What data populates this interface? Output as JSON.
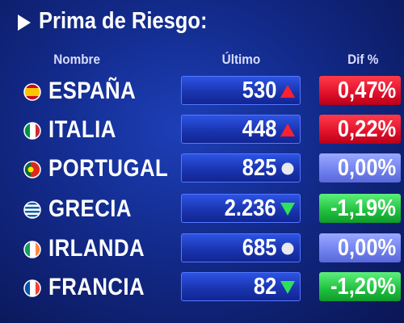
{
  "header": {
    "title": "Prima de Riesgo:"
  },
  "table": {
    "columns": [
      "Nombre",
      "Último",
      "Dif %"
    ],
    "rows": [
      [
        "ESPAÑA",
        "530",
        "0,47%"
      ],
      [
        "ITALIA",
        "448",
        "0,22%"
      ],
      [
        "PORTUGAL",
        "825",
        "0,00%"
      ],
      [
        "GRECIA",
        "2.236",
        "-1,19%"
      ],
      [
        "IRLANDA",
        "685",
        "0,00%"
      ],
      [
        "FRANCIA",
        "82",
        "-1,20%"
      ]
    ]
  }
}
